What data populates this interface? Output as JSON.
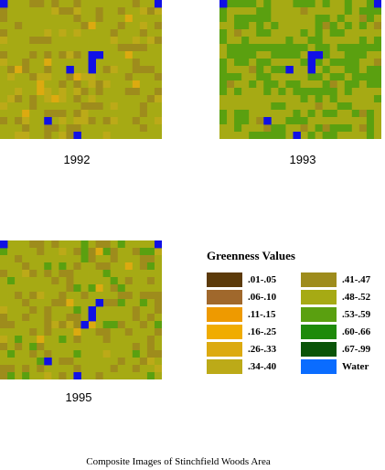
{
  "panels": [
    {
      "year": "1992"
    },
    {
      "year": "1993"
    },
    {
      "year": "1995"
    }
  ],
  "legend": {
    "title": "Greenness Values",
    "items": [
      {
        "label": ".01-.05",
        "color": "#5c3a0a"
      },
      {
        "label": ".06-.10",
        "color": "#a0682c"
      },
      {
        "label": ".11-.15",
        "color": "#ee9a00"
      },
      {
        "label": ".16-.25",
        "color": "#f0ac00"
      },
      {
        "label": ".26-.33",
        "color": "#dcaa10"
      },
      {
        "label": ".34-.40",
        "color": "#bcaa18"
      },
      {
        "label": ".41-.47",
        "color": "#9e8c1c"
      },
      {
        "label": ".48-.52",
        "color": "#a6aa14"
      },
      {
        "label": ".53-.59",
        "color": "#5aa010"
      },
      {
        "label": ".60-.66",
        "color": "#1e8a0a"
      },
      {
        "label": ".67-.99",
        "color": "#0a5408"
      },
      {
        "label": "Water",
        "color": "#0a6cff"
      }
    ]
  },
  "caption": "Composite Images of Stinchfield Woods Area",
  "water_marker_color": "#1010e6"
}
